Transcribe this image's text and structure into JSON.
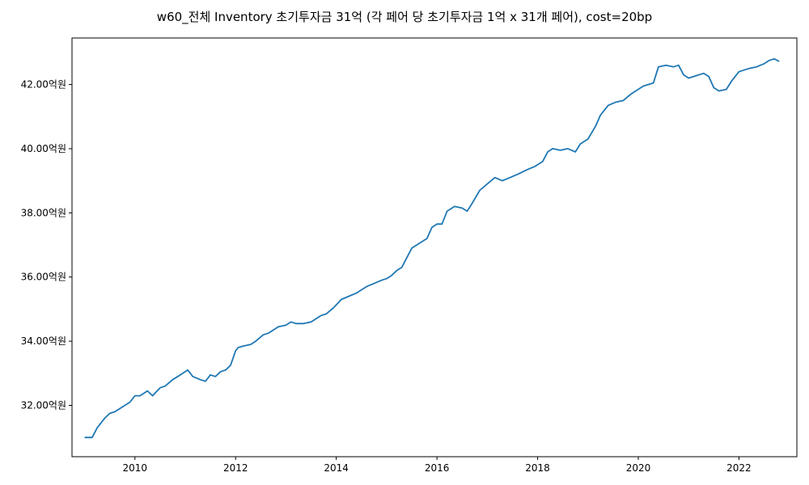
{
  "chart_data": {
    "type": "line",
    "title": "w60_전체 Inventory 초기투자금 31억 (각 페어 당 초기투자금 1억 x 31개 페어), cost=20bp",
    "xlabel": "",
    "ylabel": "",
    "xlim": [
      2008.75,
      2023.15
    ],
    "ylim": [
      30.4,
      43.45
    ],
    "x_ticks": [
      2010,
      2012,
      2014,
      2016,
      2018,
      2020,
      2022
    ],
    "x_tick_labels": [
      "2010",
      "2012",
      "2014",
      "2016",
      "2018",
      "2020",
      "2022"
    ],
    "y_ticks": [
      32,
      34,
      36,
      38,
      40,
      42
    ],
    "y_tick_labels": [
      "32.00억원",
      "34.00억원",
      "36.00억원",
      "38.00억원",
      "40.00억원",
      "42.00억원"
    ],
    "grid": false,
    "line_color": "#1f77b4",
    "series": [
      {
        "x": [
          2009.0,
          2009.15,
          2009.25,
          2009.4,
          2009.5,
          2009.6,
          2009.75,
          2009.9,
          2010.0,
          2010.1,
          2010.25,
          2010.35,
          2010.5,
          2010.6,
          2010.75,
          2010.85,
          2011.0,
          2011.05,
          2011.15,
          2011.3,
          2011.4,
          2011.5,
          2011.6,
          2011.7,
          2011.8,
          2011.9,
          2012.0,
          2012.05,
          2012.15,
          2012.3,
          2012.4,
          2012.55,
          2012.65,
          2012.75,
          2012.85,
          2013.0,
          2013.1,
          2013.2,
          2013.35,
          2013.5,
          2013.7,
          2013.8,
          2013.95,
          2014.1,
          2014.25,
          2014.4,
          2014.6,
          2014.75,
          2014.9,
          2015.0,
          2015.1,
          2015.2,
          2015.3,
          2015.4,
          2015.5,
          2015.65,
          2015.8,
          2015.9,
          2016.0,
          2016.1,
          2016.2,
          2016.35,
          2016.5,
          2016.6,
          2016.7,
          2016.85,
          2017.0,
          2017.15,
          2017.3,
          2017.45,
          2017.6,
          2017.8,
          2017.95,
          2018.1,
          2018.2,
          2018.3,
          2018.45,
          2018.6,
          2018.75,
          2018.85,
          2019.0,
          2019.15,
          2019.25,
          2019.4,
          2019.55,
          2019.7,
          2019.85,
          2019.95,
          2020.1,
          2020.3,
          2020.4,
          2020.55,
          2020.7,
          2020.8,
          2020.9,
          2021.0,
          2021.1,
          2021.2,
          2021.3,
          2021.4,
          2021.5,
          2021.6,
          2021.75,
          2021.85,
          2022.0,
          2022.1,
          2022.2,
          2022.35,
          2022.5,
          2022.6,
          2022.7,
          2022.8
        ],
        "y": [
          31.0,
          31.0,
          31.3,
          31.6,
          31.75,
          31.8,
          31.95,
          32.1,
          32.3,
          32.3,
          32.45,
          32.3,
          32.55,
          32.6,
          32.8,
          32.9,
          33.05,
          33.1,
          32.9,
          32.8,
          32.75,
          32.95,
          32.9,
          33.05,
          33.1,
          33.25,
          33.7,
          33.8,
          33.85,
          33.9,
          34.0,
          34.2,
          34.25,
          34.35,
          34.45,
          34.5,
          34.6,
          34.55,
          34.55,
          34.6,
          34.8,
          34.85,
          35.05,
          35.3,
          35.4,
          35.5,
          35.7,
          35.8,
          35.9,
          35.95,
          36.05,
          36.2,
          36.3,
          36.6,
          36.9,
          37.05,
          37.2,
          37.55,
          37.65,
          37.65,
          38.05,
          38.2,
          38.15,
          38.05,
          38.3,
          38.7,
          38.9,
          39.1,
          39.0,
          39.1,
          39.2,
          39.35,
          39.45,
          39.6,
          39.9,
          40.0,
          39.95,
          40.0,
          39.9,
          40.15,
          40.3,
          40.7,
          41.05,
          41.35,
          41.45,
          41.5,
          41.7,
          41.8,
          41.95,
          42.05,
          42.55,
          42.6,
          42.55,
          42.6,
          42.3,
          42.2,
          42.25,
          42.3,
          42.35,
          42.25,
          41.9,
          41.8,
          41.85,
          42.1,
          42.4,
          42.45,
          42.5,
          42.55,
          42.65,
          42.75,
          42.8,
          42.72
        ]
      }
    ]
  }
}
